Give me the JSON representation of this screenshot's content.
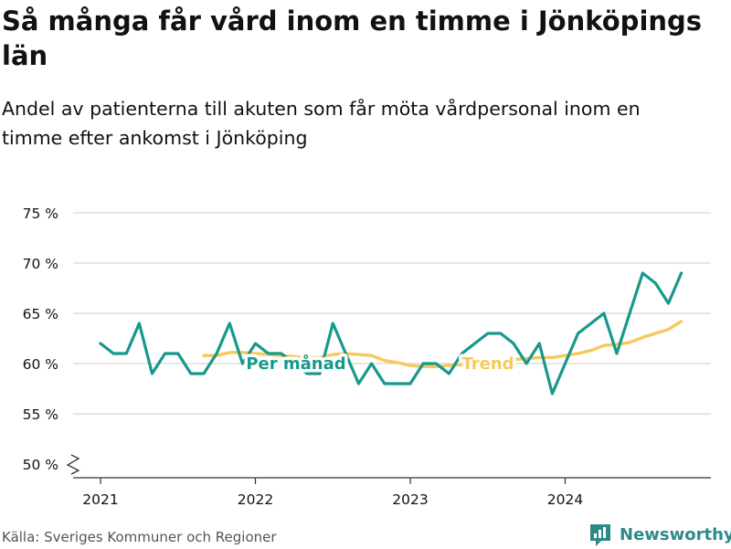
{
  "title": "Så många får vård inom en timme i Jönköpings län",
  "subtitle": "Andel av patienterna till akuten som får möta vårdpersonal inom en timme efter ankomst i Jönköping",
  "source": "Källa: Sveriges Kommuner och Regioner",
  "brand": "Newsworthy",
  "colors": {
    "monthly": "#16998c",
    "trend": "#f7c85c",
    "grid": "#cccccc",
    "axis": "#333333",
    "text": "#111111"
  },
  "chart_data": {
    "type": "line",
    "x_ticks": [
      "2021",
      "2022",
      "2023",
      "2024"
    ],
    "y_ticks": [
      "75 %",
      "70 %",
      "65 %",
      "60 %",
      "55 %",
      "50 %"
    ],
    "ylim": [
      50,
      75
    ],
    "y_axis_broken": true,
    "grid": true,
    "series": [
      {
        "name": "Per månad",
        "color": "#16998c",
        "points": [
          {
            "x": "2021-01",
            "y": 62
          },
          {
            "x": "2021-02",
            "y": 61
          },
          {
            "x": "2021-03",
            "y": 61
          },
          {
            "x": "2021-04",
            "y": 64
          },
          {
            "x": "2021-05",
            "y": 59
          },
          {
            "x": "2021-06",
            "y": 61
          },
          {
            "x": "2021-07",
            "y": 61
          },
          {
            "x": "2021-08",
            "y": 59
          },
          {
            "x": "2021-09",
            "y": 59
          },
          {
            "x": "2021-10",
            "y": 61
          },
          {
            "x": "2021-11",
            "y": 64
          },
          {
            "x": "2021-12",
            "y": 60
          },
          {
            "x": "2022-01",
            "y": 62
          },
          {
            "x": "2022-02",
            "y": 61
          },
          {
            "x": "2022-03",
            "y": 61
          },
          {
            "x": "2022-04",
            "y": 60
          },
          {
            "x": "2022-05",
            "y": 59
          },
          {
            "x": "2022-06",
            "y": 59
          },
          {
            "x": "2022-07",
            "y": 64
          },
          {
            "x": "2022-08",
            "y": 61
          },
          {
            "x": "2022-09",
            "y": 58
          },
          {
            "x": "2022-10",
            "y": 60
          },
          {
            "x": "2022-11",
            "y": 58
          },
          {
            "x": "2022-12",
            "y": 58
          },
          {
            "x": "2023-01",
            "y": 58
          },
          {
            "x": "2023-02",
            "y": 60
          },
          {
            "x": "2023-03",
            "y": 60
          },
          {
            "x": "2023-04",
            "y": 59
          },
          {
            "x": "2023-05",
            "y": 61
          },
          {
            "x": "2023-06",
            "y": 62
          },
          {
            "x": "2023-07",
            "y": 63
          },
          {
            "x": "2023-08",
            "y": 63
          },
          {
            "x": "2023-09",
            "y": 62
          },
          {
            "x": "2023-10",
            "y": 60
          },
          {
            "x": "2023-11",
            "y": 62
          },
          {
            "x": "2023-12",
            "y": 57
          },
          {
            "x": "2024-01",
            "y": 60
          },
          {
            "x": "2024-02",
            "y": 63
          },
          {
            "x": "2024-03",
            "y": 64
          },
          {
            "x": "2024-04",
            "y": 65
          },
          {
            "x": "2024-05",
            "y": 61
          },
          {
            "x": "2024-06",
            "y": 65
          },
          {
            "x": "2024-07",
            "y": 69
          },
          {
            "x": "2024-08",
            "y": 68
          },
          {
            "x": "2024-09",
            "y": 66
          },
          {
            "x": "2024-10",
            "y": 69
          }
        ]
      },
      {
        "name": "Trend",
        "color": "#f7c85c",
        "points": [
          {
            "x": "2021-09",
            "y": 60.8
          },
          {
            "x": "2021-10",
            "y": 60.8
          },
          {
            "x": "2021-11",
            "y": 61.1
          },
          {
            "x": "2021-12",
            "y": 61.1
          },
          {
            "x": "2022-01",
            "y": 61.0
          },
          {
            "x": "2022-02",
            "y": 60.9
          },
          {
            "x": "2022-03",
            "y": 60.8
          },
          {
            "x": "2022-04",
            "y": 60.7
          },
          {
            "x": "2022-05",
            "y": 60.6
          },
          {
            "x": "2022-06",
            "y": 60.6
          },
          {
            "x": "2022-07",
            "y": 60.9
          },
          {
            "x": "2022-08",
            "y": 61.0
          },
          {
            "x": "2022-09",
            "y": 60.9
          },
          {
            "x": "2022-10",
            "y": 60.8
          },
          {
            "x": "2022-11",
            "y": 60.3
          },
          {
            "x": "2022-12",
            "y": 60.1
          },
          {
            "x": "2023-01",
            "y": 59.8
          },
          {
            "x": "2023-02",
            "y": 59.7
          },
          {
            "x": "2023-03",
            "y": 59.7
          },
          {
            "x": "2023-04",
            "y": 59.8
          },
          {
            "x": "2023-05",
            "y": 59.9
          },
          {
            "x": "2023-06",
            "y": 60.0
          },
          {
            "x": "2023-07",
            "y": 60.2
          },
          {
            "x": "2023-08",
            "y": 60.3
          },
          {
            "x": "2023-09",
            "y": 60.4
          },
          {
            "x": "2023-10",
            "y": 60.5
          },
          {
            "x": "2023-11",
            "y": 60.6
          },
          {
            "x": "2023-12",
            "y": 60.6
          },
          {
            "x": "2024-01",
            "y": 60.8
          },
          {
            "x": "2024-02",
            "y": 61.0
          },
          {
            "x": "2024-03",
            "y": 61.3
          },
          {
            "x": "2024-04",
            "y": 61.8
          },
          {
            "x": "2024-05",
            "y": 61.9
          },
          {
            "x": "2024-06",
            "y": 62.1
          },
          {
            "x": "2024-07",
            "y": 62.6
          },
          {
            "x": "2024-08",
            "y": 63.0
          },
          {
            "x": "2024-09",
            "y": 63.4
          },
          {
            "x": "2024-10",
            "y": 64.2
          }
        ]
      }
    ],
    "annotations": [
      {
        "text": "Per månad",
        "series": "Per månad",
        "x": "2022-05",
        "y": 60
      },
      {
        "text": "Trend",
        "series": "Trend",
        "x": "2023-07",
        "y": 60
      }
    ]
  }
}
